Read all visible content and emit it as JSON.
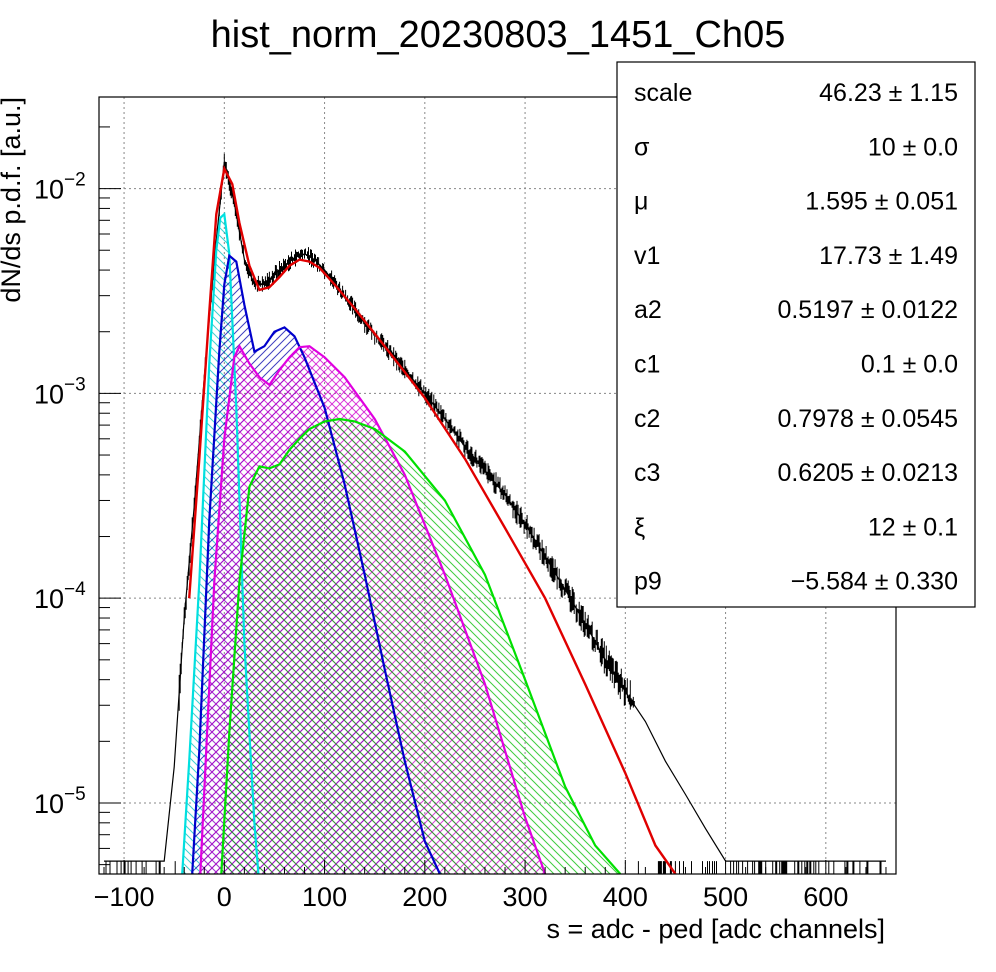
{
  "chart_data": {
    "type": "line",
    "title": "hist_norm_20230803_1451_Ch05",
    "xlabel": "s = adc - ped [adc channels]",
    "ylabel": "dN/ds p.d.f. [a.u.]",
    "xlim": [
      -125,
      670
    ],
    "ylim": [
      4.5e-06,
      0.028
    ],
    "yscale": "log",
    "grid": true,
    "x_ticks": [
      "−100",
      "0",
      "100",
      "200",
      "300",
      "400",
      "500",
      "600"
    ],
    "x_tick_values": [
      -100,
      0,
      100,
      200,
      300,
      400,
      500,
      600
    ],
    "y_tick_values": [
      1e-05,
      0.0001,
      0.001,
      0.01
    ],
    "y_tick_exponents": [
      "−5",
      "−4",
      "−3",
      "−2"
    ],
    "y_tick_base": "10",
    "stats_box": {
      "placement": "top-right",
      "rows": [
        {
          "name": "scale",
          "value": "46.23 ± 1.15"
        },
        {
          "name": "σ",
          "value": "10 ± 0.0"
        },
        {
          "name": "μ",
          "value": "1.595 ± 0.051"
        },
        {
          "name": "v1",
          "value": "17.73 ± 1.49"
        },
        {
          "name": "a2",
          "value": "0.5197 ± 0.0122"
        },
        {
          "name": "c1",
          "value": "0.1 ± 0.0"
        },
        {
          "name": "c2",
          "value": "0.7978 ± 0.0545"
        },
        {
          "name": "c3",
          "value": "0.6205 ± 0.0213"
        },
        {
          "name": "ξ",
          "value": "12 ± 0.1"
        },
        {
          "name": "p9",
          "value": "−5.584 ± 0.330"
        }
      ]
    },
    "series": [
      {
        "kind": "histogram",
        "color": "#000000",
        "x": [
          -120,
          -100,
          -80,
          -60,
          -50,
          -40,
          -30,
          -20,
          -10,
          0,
          10,
          20,
          30,
          40,
          50,
          60,
          70,
          80,
          90,
          100,
          120,
          140,
          160,
          180,
          200,
          220,
          240,
          260,
          280,
          300,
          320,
          340,
          360,
          380,
          400,
          420,
          440,
          460,
          480,
          500,
          550,
          600,
          660
        ],
        "y": [
          5.2e-06,
          5.2e-06,
          5.2e-06,
          5.2e-06,
          1.5e-05,
          8e-05,
          0.00028,
          0.0012,
          0.0045,
          0.0135,
          0.0085,
          0.0045,
          0.0034,
          0.0034,
          0.0038,
          0.0042,
          0.0046,
          0.0048,
          0.0045,
          0.004,
          0.003,
          0.0022,
          0.0017,
          0.0013,
          0.001,
          0.00075,
          0.00055,
          0.00042,
          0.00032,
          0.00023,
          0.00016,
          0.00011,
          7.5e-05,
          5e-05,
          3.5e-05,
          2.5e-05,
          1.6e-05,
          1.1e-05,
          7.5e-06,
          5.2e-06,
          5.2e-06,
          5.2e-06,
          5.2e-06
        ]
      },
      {
        "kind": "fit-total",
        "color": "#e00000",
        "x": [
          -35,
          -25,
          -15,
          -8,
          0,
          8,
          15,
          25,
          35,
          45,
          55,
          65,
          75,
          85,
          95,
          110,
          130,
          160,
          200,
          240,
          280,
          320,
          360,
          400,
          430,
          450
        ],
        "y": [
          0.0001,
          0.00048,
          0.0025,
          0.0075,
          0.0125,
          0.0105,
          0.0068,
          0.0042,
          0.0032,
          0.0033,
          0.0037,
          0.0042,
          0.0045,
          0.0044,
          0.0041,
          0.0034,
          0.0026,
          0.0017,
          0.00095,
          0.00048,
          0.00022,
          0.0001,
          3.8e-05,
          1.4e-05,
          6.2e-06,
          4.5e-06
        ]
      },
      {
        "kind": "component",
        "color": "#00e0e0",
        "fill": "#00c0c0",
        "x": [
          -42,
          -35,
          -25,
          -15,
          -8,
          -4,
          0,
          5,
          12,
          20,
          30,
          34
        ],
        "y": [
          4.5e-06,
          1.6e-05,
          0.00012,
          0.0014,
          0.005,
          0.0072,
          0.0075,
          0.0048,
          0.00085,
          6e-05,
          8e-06,
          4.5e-06
        ],
        "hatch": "\\"
      },
      {
        "kind": "component",
        "color": "#0000cc",
        "fill": "#0000aa",
        "x": [
          -32,
          -25,
          -15,
          -5,
          0,
          5,
          12,
          20,
          30,
          40,
          50,
          60,
          70,
          80,
          100,
          120,
          140,
          160,
          180,
          200,
          215
        ],
        "y": [
          4.5e-06,
          1.8e-05,
          0.00024,
          0.0016,
          0.0034,
          0.0047,
          0.0044,
          0.0027,
          0.0016,
          0.0017,
          0.002,
          0.0021,
          0.0019,
          0.0015,
          0.00085,
          0.00036,
          0.00013,
          4.5e-05,
          1.6e-05,
          6.5e-06,
          4.5e-06
        ],
        "hatch": "/"
      },
      {
        "kind": "component",
        "color": "#e000e0",
        "fill": "#cc00cc",
        "x": [
          -24,
          -10,
          0,
          10,
          15,
          25,
          35,
          45,
          55,
          65,
          75,
          85,
          100,
          120,
          150,
          180,
          220,
          260,
          300,
          320
        ],
        "y": [
          4.5e-06,
          0.00012,
          0.0006,
          0.0015,
          0.0017,
          0.0014,
          0.0012,
          0.0011,
          0.0013,
          0.0015,
          0.00168,
          0.0017,
          0.0015,
          0.0012,
          0.00075,
          0.0004,
          0.00013,
          3.8e-05,
          8.5e-06,
          4.5e-06
        ],
        "hatch": "x"
      },
      {
        "kind": "component",
        "color": "#00e000",
        "fill": "#00bb00",
        "x": [
          -3,
          5,
          15,
          25,
          35,
          45,
          55,
          65,
          75,
          85,
          100,
          115,
          130,
          150,
          180,
          220,
          260,
          300,
          340,
          370,
          395
        ],
        "y": [
          4.5e-06,
          2.2e-05,
          0.00012,
          0.00035,
          0.00044,
          0.00043,
          0.00045,
          0.00053,
          0.0006,
          0.00067,
          0.00073,
          0.00075,
          0.00073,
          0.00067,
          0.00052,
          0.0003,
          0.00013,
          4e-05,
          1.2e-05,
          6.2e-06,
          4.5e-06
        ],
        "hatch": "\\"
      }
    ]
  }
}
